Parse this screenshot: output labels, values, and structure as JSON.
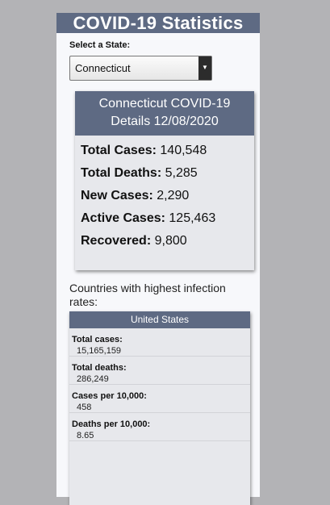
{
  "app": {
    "title": "COVID-19 Statistics"
  },
  "state_select": {
    "label": "Select a State:",
    "value": "Connecticut",
    "arrow_icon": "select-arrow-icon"
  },
  "details": {
    "title_line1": "Connecticut COVID-19",
    "title_line2": "Details 12/08/2020",
    "stats": [
      {
        "label": "Total Cases:",
        "value": "140,548"
      },
      {
        "label": "Total Deaths:",
        "value": "5,285"
      },
      {
        "label": "New Cases:",
        "value": "2,290"
      },
      {
        "label": "Active Cases:",
        "value": "125,463"
      },
      {
        "label": "Recovered:",
        "value": "9,800"
      }
    ]
  },
  "countries": {
    "title": "Countries with highest infection rates:",
    "cards": [
      {
        "name": "United States",
        "rows": [
          {
            "label": "Total cases:",
            "value": "15,165,159"
          },
          {
            "label": "Total deaths:",
            "value": "286,249"
          },
          {
            "label": "Cases per 10,000:",
            "value": "458"
          },
          {
            "label": "Deaths per 10,000:",
            "value": "8.65"
          }
        ]
      }
    ]
  },
  "colors": {
    "header": "#5e6a83",
    "background": "#b3b3b6",
    "panel": "#f7f8fb",
    "card": "#e7e8ec"
  }
}
